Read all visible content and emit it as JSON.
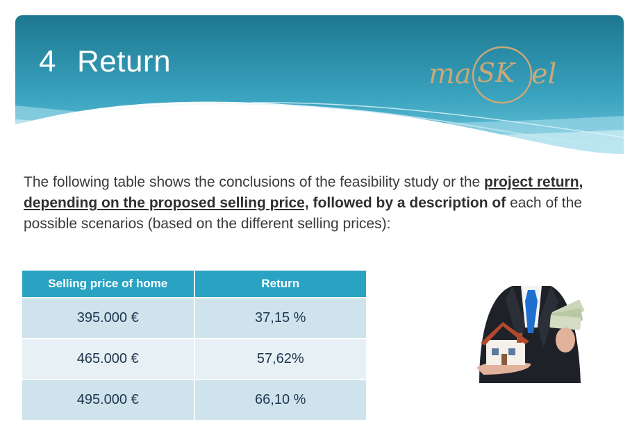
{
  "header": {
    "number": "4",
    "title": "Return",
    "logo_text": {
      "pre": "ma",
      "mid": "SK",
      "post": "el"
    }
  },
  "intro": {
    "part1": "The following table shows the conclusions of the feasibility study or the ",
    "highlight": "project return, depending on the proposed selling price,",
    "part2": " followed by a description of",
    "part3": " each of the possible scenarios (based on the different selling prices):"
  },
  "table": {
    "headers": [
      "Selling price of home",
      "Return"
    ],
    "rows": [
      [
        "395.000 €",
        "37,15 %"
      ],
      [
        "465.000 €",
        "57,62%"
      ],
      [
        "495.000 €",
        "66,10 %"
      ]
    ]
  },
  "colors": {
    "header_top": "#1f7f96",
    "header_bottom": "#7fd0e2",
    "table_header": "#2aa3c3",
    "row_odd": "#cfe3ec",
    "row_even": "#e7f0f4",
    "logo_gold": "#c9a978"
  },
  "image": {
    "subject": "businessman-holding-house-and-money"
  }
}
